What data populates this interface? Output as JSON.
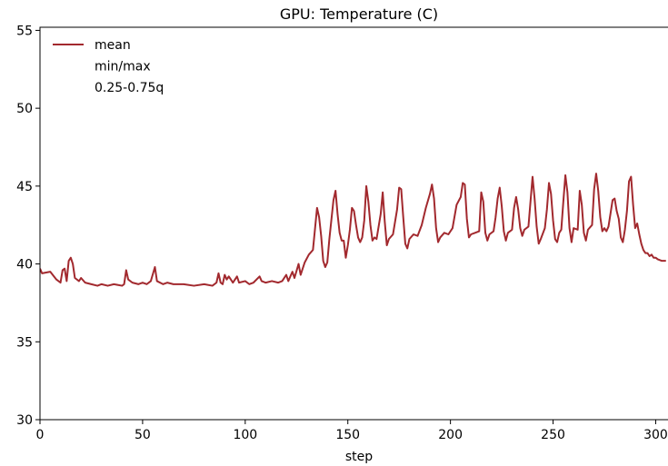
{
  "chart_data": {
    "type": "line",
    "title": "GPU: Temperature (C)",
    "x_label": "step",
    "xlim": [
      0,
      306
    ],
    "ylim": [
      30,
      55.2
    ],
    "xticks": [
      0,
      50,
      100,
      150,
      200,
      250,
      300
    ],
    "yticks": [
      30,
      35,
      40,
      45,
      50,
      55
    ],
    "grid": false,
    "legend_loc": "upper left",
    "x": [
      0,
      1,
      5,
      8,
      10,
      11,
      12,
      13,
      14,
      15,
      16,
      17,
      19,
      20,
      22,
      25,
      28,
      30,
      33,
      36,
      40,
      41,
      42,
      43,
      45,
      48,
      50,
      52,
      54,
      56,
      57,
      60,
      62,
      65,
      70,
      75,
      80,
      84,
      86,
      87,
      88,
      89,
      90,
      91,
      92,
      94,
      96,
      97,
      100,
      102,
      104,
      107,
      108,
      110,
      113,
      116,
      118,
      120,
      121,
      123,
      124,
      126,
      127,
      129,
      131,
      133,
      135,
      136,
      137,
      138,
      139,
      140,
      141,
      143,
      144,
      145,
      146,
      147,
      148,
      149,
      150,
      151,
      152,
      153,
      154,
      155,
      156,
      157,
      158,
      159,
      160,
      161,
      162,
      163,
      164,
      166,
      167,
      168,
      169,
      170,
      172,
      174,
      175,
      176,
      177,
      178,
      179,
      180,
      182,
      184,
      186,
      188,
      190,
      191,
      192,
      193,
      194,
      195,
      197,
      199,
      201,
      203,
      205,
      206,
      207,
      208,
      209,
      210,
      212,
      214,
      215,
      216,
      217,
      218,
      219,
      221,
      222,
      223,
      224,
      225,
      226,
      227,
      228,
      230,
      231,
      232,
      233,
      234,
      235,
      236,
      238,
      239,
      240,
      241,
      242,
      243,
      244,
      246,
      247,
      248,
      249,
      250,
      251,
      252,
      253,
      254,
      255,
      256,
      257,
      258,
      259,
      260,
      262,
      263,
      264,
      265,
      266,
      267,
      269,
      270,
      271,
      272,
      273,
      274,
      275,
      276,
      277,
      279,
      280,
      281,
      282,
      283,
      284,
      285,
      286,
      287,
      288,
      289,
      290,
      291,
      292,
      293,
      294,
      295,
      296,
      297,
      298,
      299,
      300,
      301,
      303,
      305
    ],
    "series": [
      {
        "name": "mean",
        "color": "#a2292e",
        "values": [
          39.7,
          39.4,
          39.5,
          39.0,
          38.8,
          39.6,
          39.7,
          38.9,
          40.2,
          40.4,
          40.0,
          39.1,
          38.9,
          39.1,
          38.8,
          38.7,
          38.6,
          38.7,
          38.6,
          38.7,
          38.6,
          38.7,
          39.6,
          39.0,
          38.8,
          38.7,
          38.8,
          38.7,
          38.9,
          39.8,
          38.9,
          38.7,
          38.8,
          38.7,
          38.7,
          38.6,
          38.7,
          38.6,
          38.8,
          39.4,
          38.8,
          38.7,
          39.3,
          39.0,
          39.2,
          38.8,
          39.2,
          38.8,
          38.9,
          38.7,
          38.8,
          39.2,
          38.9,
          38.8,
          38.9,
          38.8,
          38.9,
          39.3,
          38.9,
          39.5,
          39.1,
          40.0,
          39.3,
          40.1,
          40.6,
          40.9,
          43.6,
          43.0,
          41.8,
          40.2,
          39.8,
          40.1,
          41.6,
          44.1,
          44.7,
          43.2,
          42.0,
          41.5,
          41.5,
          40.4,
          41.2,
          42.2,
          43.6,
          43.4,
          42.5,
          41.7,
          41.4,
          41.7,
          42.8,
          45.0,
          44.0,
          42.5,
          41.5,
          41.7,
          41.6,
          43.2,
          44.6,
          42.7,
          41.2,
          41.6,
          41.9,
          43.5,
          44.9,
          44.8,
          43.0,
          41.3,
          41.0,
          41.6,
          41.9,
          41.8,
          42.5,
          43.6,
          44.5,
          45.1,
          44.2,
          42.3,
          41.4,
          41.7,
          42.0,
          41.9,
          42.3,
          43.8,
          44.3,
          45.2,
          45.1,
          42.9,
          41.7,
          41.9,
          42.0,
          42.1,
          44.6,
          44.0,
          42.0,
          41.5,
          41.9,
          42.1,
          43.0,
          44.2,
          44.9,
          43.7,
          42.1,
          41.5,
          42.0,
          42.2,
          43.6,
          44.3,
          43.5,
          42.3,
          41.8,
          42.2,
          42.4,
          44.0,
          45.6,
          44.2,
          42.4,
          41.3,
          41.6,
          42.3,
          43.5,
          45.2,
          44.5,
          42.8,
          41.6,
          41.4,
          42.0,
          42.2,
          44.0,
          45.7,
          44.6,
          42.3,
          41.4,
          42.3,
          42.2,
          44.7,
          43.8,
          42.0,
          41.5,
          42.2,
          42.5,
          44.8,
          45.8,
          44.7,
          43.0,
          42.1,
          42.3,
          42.1,
          42.4,
          44.1,
          44.2,
          43.4,
          42.9,
          41.7,
          41.4,
          42.2,
          43.4,
          45.3,
          45.6,
          43.8,
          42.3,
          42.6,
          41.9,
          41.3,
          40.9,
          40.7,
          40.7,
          40.5,
          40.6,
          40.4,
          40.4,
          40.3,
          40.2,
          40.2
        ]
      },
      {
        "name": "min/max"
      },
      {
        "name": "0.25-0.75q"
      }
    ]
  }
}
